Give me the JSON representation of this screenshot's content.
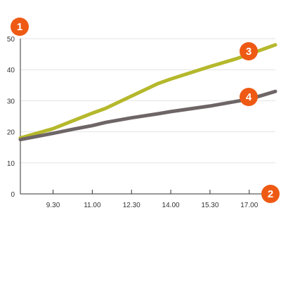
{
  "chart_data": {
    "type": "line",
    "x": [
      "8.15",
      "9.30",
      "10.15",
      "11.00",
      "11.30",
      "12.30",
      "13.30",
      "14.00",
      "15.30",
      "16.30",
      "17.00",
      "18.00"
    ],
    "x_tick_labels": [
      "9.30",
      "11.00",
      "12.30",
      "14.00",
      "15.30",
      "17.00"
    ],
    "y_tick_labels": [
      "0",
      "10",
      "20",
      "30",
      "40",
      "50"
    ],
    "ylim": [
      0,
      50
    ],
    "grid": true,
    "series": [
      {
        "values": [
          18,
          21,
          23.5,
          26,
          27.5,
          31.5,
          35.5,
          37,
          41,
          43.5,
          45,
          48
        ],
        "color": "#b5b82b"
      },
      {
        "values": [
          17.5,
          19.5,
          20.8,
          22,
          23,
          24.5,
          25.8,
          26.5,
          28.3,
          29.8,
          30.5,
          33
        ],
        "color": "#6e6566"
      }
    ],
    "callouts": [
      {
        "label": "1",
        "color": "#ee5a14"
      },
      {
        "label": "2",
        "color": "#ee5a14"
      },
      {
        "label": "3",
        "color": "#ee5a14"
      },
      {
        "label": "4",
        "color": "#ee5a14"
      }
    ]
  }
}
